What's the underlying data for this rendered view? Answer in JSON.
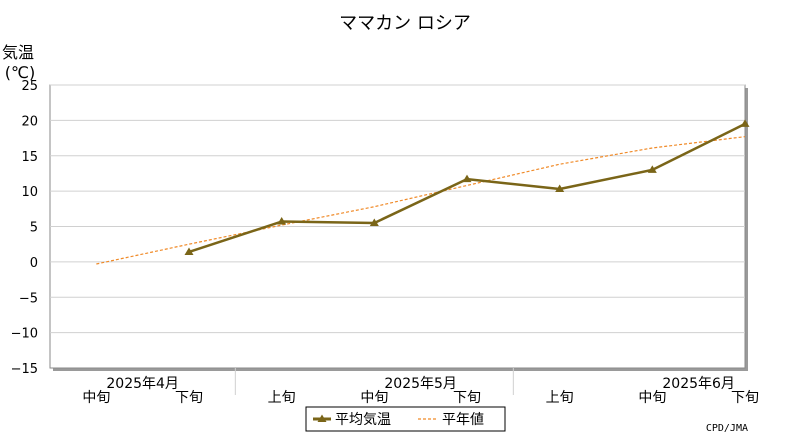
{
  "chart_data": {
    "type": "line",
    "title": "ママカン ロシア",
    "ylabel_line1": "気温",
    "ylabel_line2": "(℃)",
    "ylim": [
      -15,
      25
    ],
    "yticks": [
      -15,
      -10,
      -5,
      0,
      5,
      10,
      15,
      20,
      25
    ],
    "ytick_labels": [
      "−15",
      "−10",
      "−5",
      "0",
      "5",
      "10",
      "15",
      "20",
      "25"
    ],
    "grid": true,
    "categories": [
      "中旬",
      "下旬",
      "上旬",
      "中旬",
      "下旬",
      "上旬",
      "中旬",
      "下旬"
    ],
    "months": [
      {
        "label": "2025年4月",
        "center_index": 0.5
      },
      {
        "label": "2025年5月",
        "center_index": 3.5
      },
      {
        "label": "2025年6月",
        "center_index": 6.5
      }
    ],
    "series": [
      {
        "name": "平均気温",
        "color": "#7a6518",
        "style": "solid",
        "marker": "triangle",
        "values": [
          null,
          1.4,
          5.7,
          5.5,
          11.7,
          10.3,
          13.0,
          19.5
        ]
      },
      {
        "name": "平年値",
        "color": "#f08a28",
        "style": "dashed",
        "marker": "none",
        "values": [
          -0.3,
          2.5,
          5.2,
          7.8,
          10.8,
          13.8,
          16.1,
          17.7
        ]
      }
    ],
    "legend_position": "bottom-center",
    "credit": "CPD/JMA"
  }
}
